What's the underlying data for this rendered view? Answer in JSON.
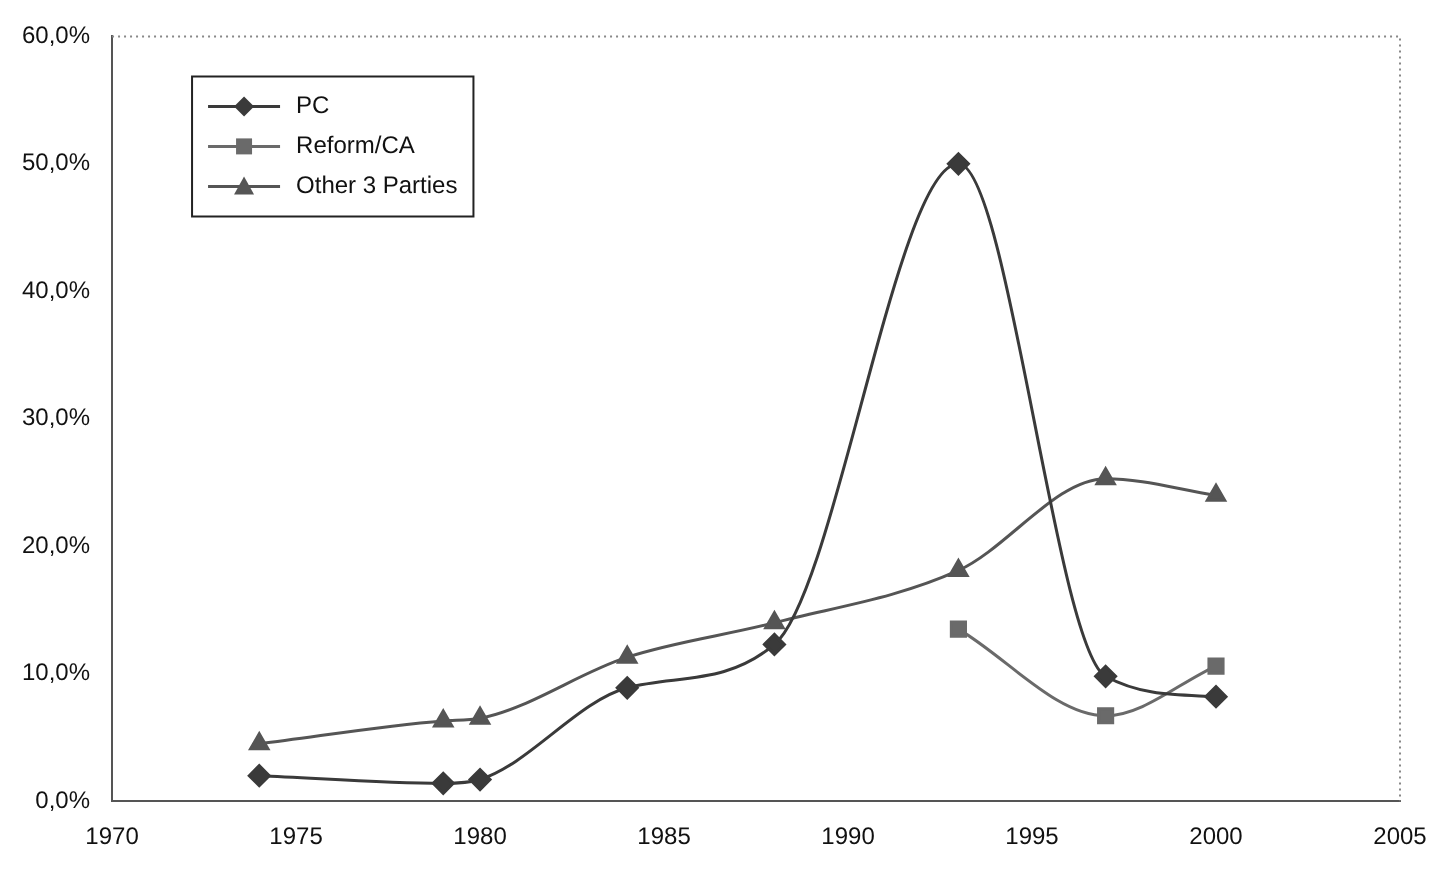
{
  "chart_data": {
    "type": "line",
    "x": [
      1974,
      1979,
      1980,
      1984,
      1988,
      1993,
      1997,
      2000
    ],
    "series": [
      {
        "name": "PC",
        "color": "#3a3a3a",
        "marker": "diamond",
        "values": [
          2.0,
          1.4,
          1.7,
          8.9,
          12.3,
          50.0,
          9.8,
          8.2
        ]
      },
      {
        "name": "Reform/CA",
        "color": "#6a6a6a",
        "marker": "square",
        "x": [
          1993,
          1997,
          2000
        ],
        "values": [
          13.5,
          6.7,
          10.6
        ]
      },
      {
        "name": "Other 3 Parties",
        "color": "#555555",
        "marker": "triangle",
        "values": [
          4.5,
          6.3,
          6.5,
          11.3,
          14.0,
          18.1,
          25.3,
          24.0
        ]
      }
    ],
    "xlim": [
      1970,
      2005
    ],
    "xticks": [
      1970,
      1975,
      1980,
      1985,
      1990,
      1995,
      2000,
      2005
    ],
    "ylim": [
      0,
      60
    ],
    "yticks": [
      {
        "value": 0,
        "label": "0,0%"
      },
      {
        "value": 10,
        "label": "10,0%"
      },
      {
        "value": 20,
        "label": "20,0%"
      },
      {
        "value": 30,
        "label": "30,0%"
      },
      {
        "value": 40,
        "label": "40,0%"
      },
      {
        "value": 50,
        "label": "50,0%"
      },
      {
        "value": 60,
        "label": "60,0%"
      }
    ],
    "grid": false,
    "legend": "top left",
    "line_style": "solid"
  }
}
